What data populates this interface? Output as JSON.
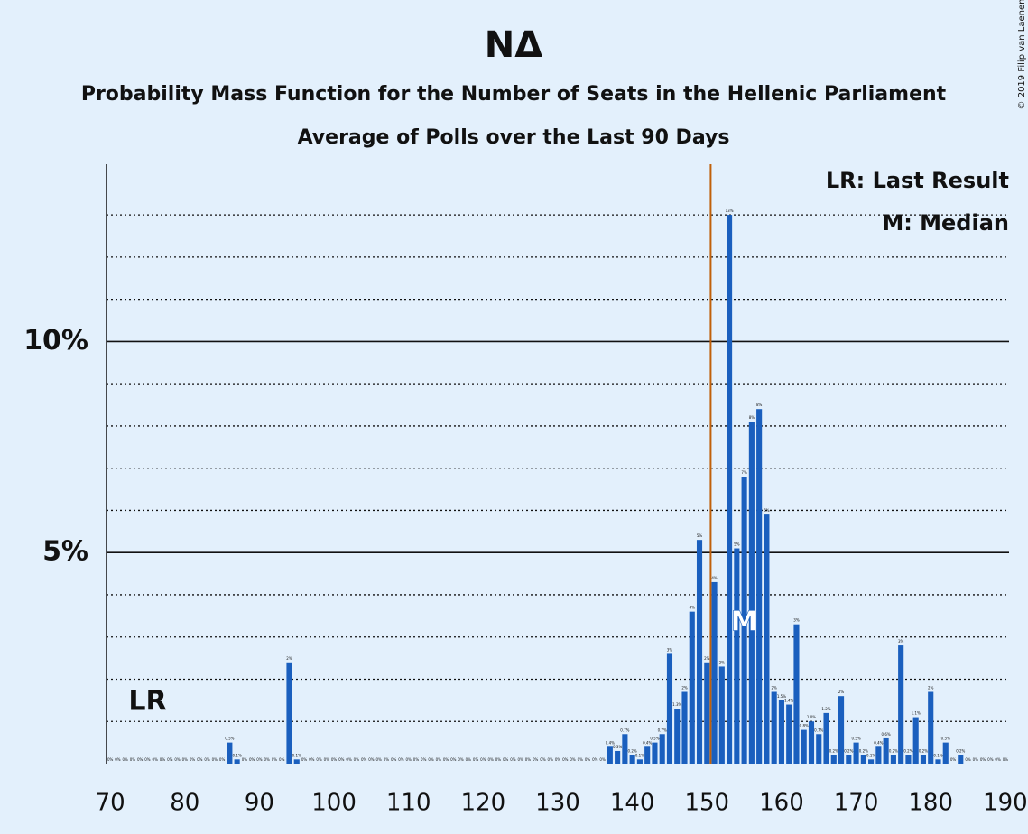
{
  "chart_data": {
    "type": "bar",
    "title": "ΝΔ",
    "subtitles": [
      "Probability Mass Function for the Number of Seats in the Hellenic Parliament",
      "Average of Polls over the Last 90 Days"
    ],
    "credit": "© 2019 Filip van Laenen",
    "color": "#1a5fbe",
    "majority_line": 151,
    "majority_color": "#c0600a",
    "last_result": {
      "x": 75,
      "label": "LR",
      "legend": "LR: Last Result"
    },
    "median": {
      "x": 155,
      "label": "M",
      "legend": "M: Median"
    },
    "xlim": [
      69.5,
      190.5
    ],
    "xticks": [
      70,
      80,
      90,
      100,
      110,
      120,
      130,
      140,
      150,
      160,
      170,
      180,
      190
    ],
    "ylim": [
      0,
      14.2
    ],
    "yticks": [
      {
        "value": 5,
        "label": "5%"
      },
      {
        "value": 10,
        "label": "10%"
      }
    ],
    "minor_yticks": [
      1,
      2,
      3,
      4,
      6,
      7,
      8,
      9,
      11,
      12,
      13
    ],
    "x": [
      70,
      71,
      72,
      73,
      74,
      75,
      76,
      77,
      78,
      79,
      80,
      81,
      82,
      83,
      84,
      85,
      86,
      87,
      88,
      89,
      90,
      91,
      92,
      93,
      94,
      95,
      96,
      97,
      98,
      99,
      100,
      101,
      102,
      103,
      104,
      105,
      106,
      107,
      108,
      109,
      110,
      111,
      112,
      113,
      114,
      115,
      116,
      117,
      118,
      119,
      120,
      121,
      122,
      123,
      124,
      125,
      126,
      127,
      128,
      129,
      130,
      131,
      132,
      133,
      134,
      135,
      136,
      137,
      138,
      139,
      140,
      141,
      142,
      143,
      144,
      145,
      146,
      147,
      148,
      149,
      150,
      151,
      152,
      153,
      154,
      155,
      156,
      157,
      158,
      159,
      160,
      161,
      162,
      163,
      164,
      165,
      166,
      167,
      168,
      169,
      170,
      171,
      172,
      173,
      174,
      175,
      176,
      177,
      178,
      179,
      180,
      181,
      182,
      183,
      184,
      185,
      186,
      187,
      188,
      189,
      190
    ],
    "values": [
      0,
      0,
      0,
      0,
      0,
      0,
      0,
      0,
      0,
      0,
      0,
      0,
      0,
      0,
      0,
      0,
      0.5,
      0.1,
      0,
      0,
      0,
      0,
      0,
      0,
      2.4,
      0.1,
      0,
      0,
      0,
      0,
      0,
      0,
      0,
      0,
      0,
      0,
      0,
      0,
      0,
      0,
      0,
      0,
      0,
      0,
      0,
      0,
      0,
      0,
      0,
      0,
      0,
      0,
      0,
      0,
      0,
      0,
      0,
      0,
      0,
      0,
      0,
      0,
      0,
      0,
      0,
      0,
      0,
      0.4,
      0.3,
      0.7,
      0.2,
      0.1,
      0.4,
      0.5,
      0.7,
      2.6,
      1.3,
      1.7,
      3.6,
      5.3,
      2.4,
      4.3,
      2.3,
      13.0,
      5.1,
      6.8,
      8.1,
      8.4,
      5.9,
      1.7,
      1.5,
      1.4,
      3.3,
      0.8,
      1.0,
      0.7,
      1.2,
      0.2,
      1.6,
      0.2,
      0.5,
      0.2,
      0.1,
      0.4,
      0.6,
      0.2,
      2.8,
      0.2,
      1.1,
      0.2,
      1.7,
      0.1,
      0.5,
      0,
      0.2,
      0,
      0,
      0,
      0,
      0,
      0
    ],
    "value_labels": [
      "0%",
      "0%",
      "0%",
      "0%",
      "0%",
      "0%",
      "0%",
      "0%",
      "0%",
      "0%",
      "0%",
      "0%",
      "0%",
      "0%",
      "0%",
      "0%",
      "0.5%",
      "0.1%",
      "0%",
      "0%",
      "0%",
      "0%",
      "0%",
      "0%",
      "2%",
      "0.1%",
      "0%",
      "0%",
      "0%",
      "0%",
      "0%",
      "0%",
      "0%",
      "0%",
      "0%",
      "0%",
      "0%",
      "0%",
      "0%",
      "0%",
      "0%",
      "0%",
      "0%",
      "0%",
      "0%",
      "0%",
      "0%",
      "0%",
      "0%",
      "0%",
      "0%",
      "0%",
      "0%",
      "0%",
      "0%",
      "0%",
      "0%",
      "0%",
      "0%",
      "0%",
      "0%",
      "0%",
      "0%",
      "0%",
      "0%",
      "0%",
      "0%",
      "0.4%",
      "0.3%",
      "0.7%",
      "0.2%",
      "0.1%",
      "0.4%",
      "0.5%",
      "0.7%",
      "3%",
      "1.3%",
      "2%",
      "4%",
      "5%",
      "2%",
      "4%",
      "2%",
      "13%",
      "5%",
      "7%",
      "8%",
      "8%",
      "6%",
      "2%",
      "1.5%",
      "1.4%",
      "3%",
      "0.8%",
      "1.0%",
      "0.7%",
      "1.2%",
      "0.2%",
      "2%",
      "0.2%",
      "0.5%",
      "0.2%",
      "0.1%",
      "0.4%",
      "0.6%",
      "0.2%",
      "3%",
      "0.2%",
      "1.1%",
      "0.2%",
      "2%",
      "0.1%",
      "0.5%",
      "0%",
      "0.2%",
      "0%",
      "0%",
      "0%",
      "0%",
      "0%",
      "0%"
    ]
  }
}
